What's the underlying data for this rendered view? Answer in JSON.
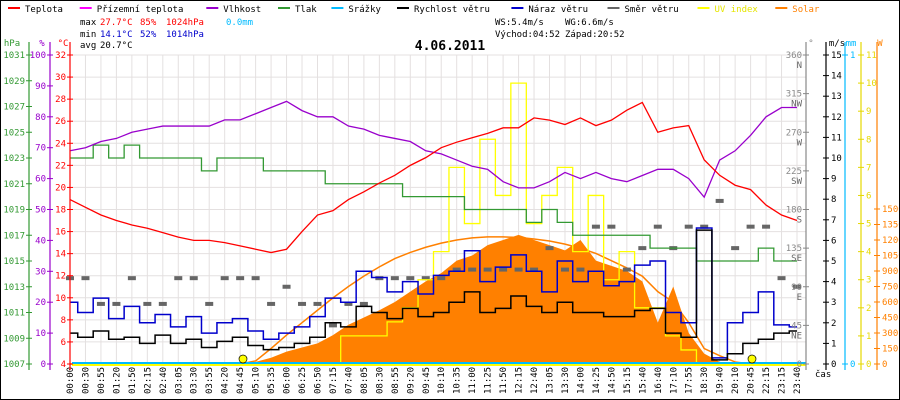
{
  "chart_data": {
    "type": "line",
    "title": "4.06.2011",
    "xlabel": "čas",
    "legend": [
      {
        "name": "Teplota",
        "color": "#ff0000"
      },
      {
        "name": "Přízemní teplota",
        "color": "#ff00ff"
      },
      {
        "name": "Vlhkost",
        "color": "#9900cc"
      },
      {
        "name": "Tlak",
        "color": "#339933"
      },
      {
        "name": "Srážky",
        "color": "#00bbff"
      },
      {
        "name": "Rychlost větru",
        "color": "#000000"
      },
      {
        "name": "Náraz větru",
        "color": "#0000cc"
      },
      {
        "name": "Směr větru",
        "color": "#666666"
      },
      {
        "name": "UV index",
        "color": "#ffff00"
      },
      {
        "name": "Solar",
        "color": "#ff8000"
      }
    ],
    "legend_position": "top",
    "grid": true,
    "stats": {
      "max_label": "max",
      "max_temp": "27.7°C",
      "max_hum": "85%",
      "max_press": "1024hPa",
      "rain": "0.0mm",
      "min_label": "min",
      "min_temp": "14.1°C",
      "min_hum": "52%",
      "min_press": "1014hPa",
      "avg_label": "avg",
      "avg_temp": "20.7°C",
      "ws": "WS:5.4m/s",
      "wg": "WG:6.6m/s",
      "sunrise": "Východ:04:52",
      "sunset": "Západ:20:52"
    },
    "x": [
      "00:00",
      "00:30",
      "00:55",
      "01:20",
      "01:50",
      "02:15",
      "02:40",
      "03:05",
      "03:30",
      "03:55",
      "04:20",
      "04:45",
      "05:10",
      "05:35",
      "06:00",
      "06:25",
      "06:50",
      "07:15",
      "07:40",
      "08:05",
      "08:30",
      "08:55",
      "09:20",
      "09:45",
      "10:10",
      "10:35",
      "11:00",
      "11:25",
      "11:50",
      "12:15",
      "12:40",
      "13:05",
      "13:30",
      "14:00",
      "14:25",
      "14:50",
      "15:15",
      "15:40",
      "16:40",
      "17:10",
      "17:55",
      "18:30",
      "19:40",
      "20:10",
      "20:45",
      "22:15",
      "23:15",
      "23:40"
    ],
    "axes": {
      "hPa": {
        "unit": "hPa",
        "range": [
          1007,
          1031
        ],
        "ticks": [
          1007,
          1009,
          1011,
          1013,
          1015,
          1017,
          1019,
          1021,
          1023,
          1025,
          1027,
          1029,
          1031
        ]
      },
      "pct": {
        "unit": "%",
        "range": [
          0,
          100
        ],
        "ticks": [
          0,
          10,
          20,
          30,
          40,
          50,
          60,
          70,
          80,
          90,
          100
        ]
      },
      "temp": {
        "unit": "°C",
        "range": [
          4,
          32
        ],
        "ticks": [
          4,
          6,
          8,
          10,
          12,
          14,
          16,
          18,
          20,
          22,
          24,
          26,
          28,
          30,
          32
        ]
      },
      "dir": {
        "unit": "°",
        "range": [
          0,
          360
        ],
        "ticks": [
          {
            "v": 0,
            "l": "0"
          },
          {
            "v": 45,
            "l": "45",
            "c": "NE"
          },
          {
            "v": 90,
            "l": "90",
            "c": "E"
          },
          {
            "v": 135,
            "l": "135",
            "c": "SE"
          },
          {
            "v": 180,
            "l": "180",
            "c": "S"
          },
          {
            "v": 225,
            "l": "225",
            "c": "SW"
          },
          {
            "v": 270,
            "l": "270",
            "c": "W"
          },
          {
            "v": 315,
            "l": "315",
            "c": "NW"
          },
          {
            "v": 360,
            "l": "360",
            "c": "N"
          }
        ]
      },
      "ms": {
        "unit": "m/s",
        "range": [
          0,
          15
        ],
        "ticks": [
          0,
          1,
          2,
          3,
          4,
          5,
          6,
          7,
          8,
          9,
          10,
          11,
          12,
          13,
          14,
          15
        ]
      },
      "mm": {
        "unit": "mm",
        "range": [
          0,
          1
        ],
        "ticks": [
          0,
          1
        ]
      },
      "uv": {
        "unit": "",
        "range": [
          0,
          11
        ],
        "ticks": [
          0,
          1,
          2,
          3,
          4,
          5,
          6,
          7,
          8,
          9,
          10,
          11
        ]
      },
      "w": {
        "unit": "W",
        "range": [
          0,
          1500
        ],
        "ticks": [
          0,
          150,
          300,
          450,
          600,
          750,
          900,
          1050,
          1200,
          1350,
          1500
        ]
      }
    },
    "series": [
      {
        "name": "Teplota",
        "axis": "temp",
        "color": "#ff0000",
        "values": [
          18.9,
          18.2,
          17.5,
          17.0,
          16.6,
          16.3,
          15.9,
          15.5,
          15.2,
          15.2,
          15.0,
          14.7,
          14.4,
          14.1,
          14.4,
          16.0,
          17.5,
          17.9,
          18.9,
          19.6,
          20.4,
          21.1,
          22.0,
          22.7,
          23.6,
          24.1,
          24.5,
          24.9,
          25.4,
          25.4,
          26.3,
          26.1,
          25.7,
          26.3,
          25.6,
          26.1,
          27.0,
          27.7,
          25.0,
          25.4,
          25.6,
          22.5,
          21.1,
          20.2,
          19.8,
          18.4,
          17.5,
          17.0
        ]
      },
      {
        "name": "Vlhkost",
        "axis": "pct",
        "color": "#9900cc",
        "values": [
          69,
          70,
          72,
          73,
          75,
          76,
          77,
          77,
          77,
          77,
          79,
          79,
          81,
          83,
          85,
          82,
          80,
          80,
          77,
          76,
          74,
          73,
          72,
          69,
          68,
          66,
          64,
          63,
          59,
          57,
          57,
          59,
          62,
          60,
          62,
          60,
          59,
          61,
          63,
          63,
          60,
          54,
          66,
          69,
          74,
          80,
          83,
          83
        ]
      },
      {
        "name": "Tlak",
        "axis": "hPa",
        "color": "#339933",
        "values": [
          1023,
          1023,
          1024,
          1023,
          1024,
          1023,
          1023,
          1023,
          1023,
          1022,
          1023,
          1023,
          1023,
          1022,
          1022,
          1022,
          1022,
          1021,
          1021,
          1021,
          1021,
          1021,
          1020,
          1020,
          1020,
          1020,
          1019,
          1019,
          1019,
          1019,
          1018,
          1019,
          1018,
          1017,
          1017,
          1017,
          1017,
          1017,
          1016,
          1016,
          1016,
          1015,
          1015,
          1015,
          1015,
          1016,
          1015,
          1015
        ]
      },
      {
        "name": "Srážky",
        "axis": "mm",
        "color": "#00bbff",
        "values": [
          0,
          0,
          0,
          0,
          0,
          0,
          0,
          0,
          0,
          0,
          0,
          0,
          0,
          0,
          0,
          0,
          0,
          0,
          0,
          0,
          0,
          0,
          0,
          0,
          0,
          0,
          0,
          0,
          0,
          0,
          0,
          0,
          0,
          0,
          0,
          0,
          0,
          0,
          0,
          0,
          0,
          0,
          0,
          0,
          0,
          0,
          0,
          0
        ]
      },
      {
        "name": "Rychlost větru",
        "axis": "ms",
        "color": "#000000",
        "values": [
          1.5,
          1.3,
          1.6,
          1.2,
          1.3,
          1.0,
          1.4,
          1.0,
          1.2,
          0.8,
          1.1,
          1.3,
          0.9,
          0.7,
          0.8,
          1.0,
          1.3,
          2.0,
          1.8,
          2.8,
          2.5,
          2.2,
          2.7,
          2.3,
          2.5,
          3.0,
          3.5,
          2.5,
          2.7,
          3.3,
          2.8,
          2.5,
          3.0,
          2.5,
          2.5,
          2.3,
          2.3,
          2.6,
          2.7,
          1.5,
          1.3,
          6.5,
          0.2,
          0.5,
          1.0,
          1.2,
          1.5,
          1.6
        ]
      },
      {
        "name": "Náraz větru",
        "axis": "ms",
        "color": "#0000cc",
        "values": [
          3.0,
          2.5,
          3.2,
          2.2,
          2.8,
          2.0,
          2.4,
          1.8,
          2.3,
          1.5,
          2.0,
          2.2,
          1.6,
          1.2,
          1.5,
          1.8,
          2.3,
          3.2,
          3.0,
          4.5,
          4.2,
          3.5,
          4.0,
          3.4,
          4.3,
          4.5,
          5.5,
          4.0,
          4.7,
          5.3,
          4.5,
          3.5,
          5.0,
          4.0,
          4.5,
          3.8,
          4.0,
          4.8,
          5.0,
          2.5,
          2.0,
          6.6,
          0.3,
          2.0,
          2.5,
          3.5,
          1.9,
          1.8
        ]
      },
      {
        "name": "UV index",
        "axis": "uv",
        "color": "#ffff00",
        "values": [
          0,
          0,
          0,
          0,
          0,
          0,
          0,
          0,
          0,
          0,
          0,
          0,
          0,
          0,
          0,
          0,
          0,
          0,
          1,
          1,
          1,
          1.5,
          2,
          3,
          4,
          7,
          5,
          8,
          6,
          10,
          5,
          6,
          7,
          4,
          6,
          3,
          4,
          2,
          2,
          1,
          0.5,
          0,
          0,
          0,
          0,
          0,
          0,
          0
        ]
      },
      {
        "name": "Solar",
        "axis": "w",
        "color": "#ff8000",
        "values": [
          0,
          0,
          0,
          0,
          0,
          0,
          0,
          0,
          0,
          0,
          0,
          0,
          20,
          60,
          120,
          160,
          200,
          280,
          380,
          450,
          520,
          600,
          700,
          800,
          880,
          1000,
          1050,
          1150,
          1200,
          1250,
          1200,
          1150,
          1100,
          1200,
          1000,
          950,
          900,
          800,
          400,
          750,
          300,
          100,
          20,
          0,
          0,
          0,
          0,
          0
        ]
      },
      {
        "name": "Solar theoretical",
        "axis": "w",
        "color": "#ff8000",
        "values": [
          0,
          0,
          0,
          0,
          0,
          0,
          0,
          0,
          0,
          0,
          0,
          0,
          30,
          150,
          280,
          400,
          520,
          640,
          750,
          850,
          940,
          1020,
          1080,
          1130,
          1170,
          1200,
          1220,
          1230,
          1230,
          1225,
          1210,
          1190,
          1160,
          1120,
          1070,
          1000,
          930,
          850,
          700,
          600,
          400,
          150,
          80,
          20,
          0,
          0,
          0,
          0
        ]
      },
      {
        "name": "Směr větru",
        "axis": "dir",
        "color": "#666666",
        "values": [
          100,
          100,
          70,
          70,
          100,
          70,
          70,
          100,
          100,
          70,
          100,
          100,
          100,
          70,
          90,
          70,
          70,
          45,
          70,
          70,
          100,
          100,
          100,
          100,
          100,
          110,
          110,
          110,
          110,
          110,
          110,
          135,
          110,
          110,
          160,
          160,
          110,
          135,
          160,
          135,
          160,
          160,
          190,
          135,
          160,
          160,
          100,
          90
        ]
      }
    ],
    "sun_markers": [
      "04:52",
      "20:52"
    ]
  }
}
